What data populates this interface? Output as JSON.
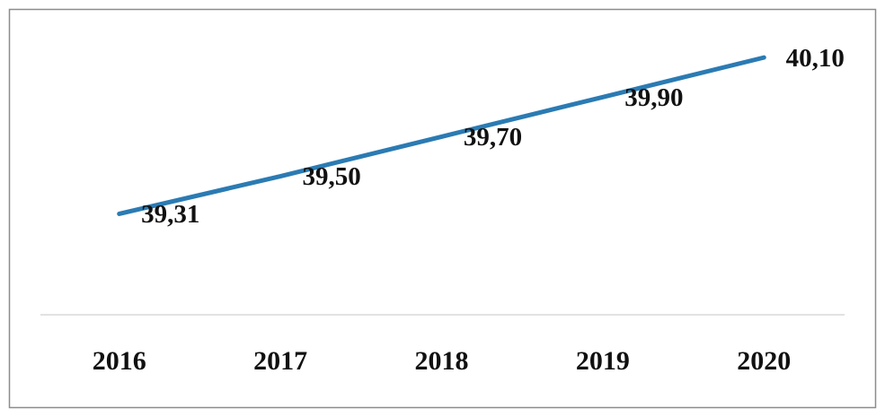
{
  "chart_data": {
    "type": "line",
    "categories": [
      "2016",
      "2017",
      "2018",
      "2019",
      "2020"
    ],
    "series": [
      {
        "color": "#2b7bb3",
        "values": [
          39.31,
          39.5,
          39.7,
          39.9,
          40.1
        ],
        "value_labels": [
          "39,31",
          "39,50",
          "39,70",
          "39,90",
          "40,10"
        ]
      }
    ],
    "ylim": [
      38.8,
      40.3
    ]
  }
}
